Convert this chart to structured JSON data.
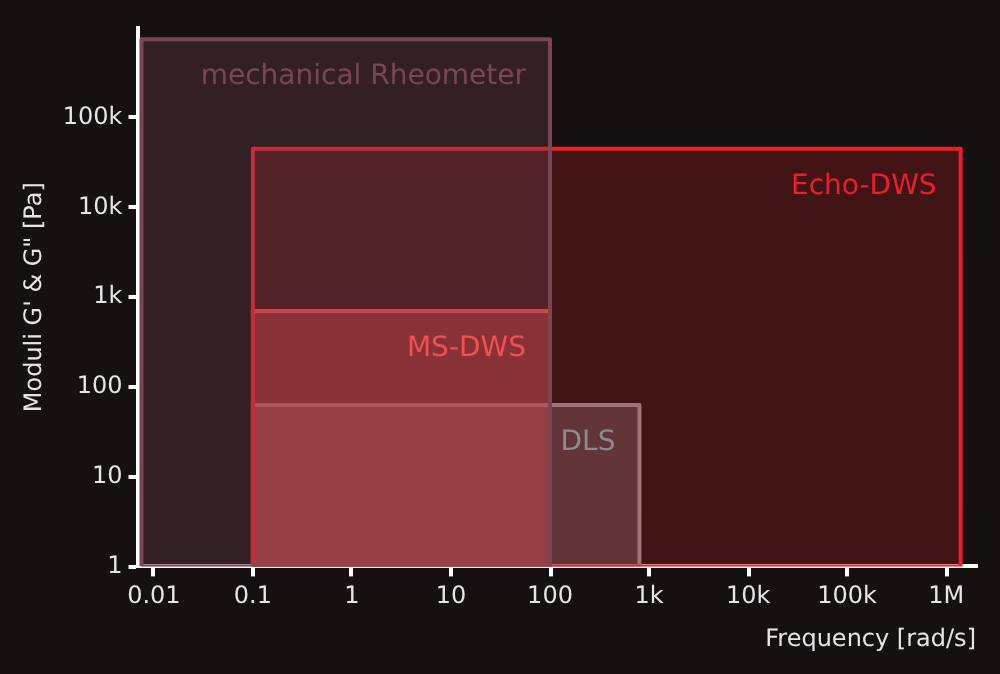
{
  "chart_data": {
    "type": "area",
    "xlabel": "Frequency [rad/s]",
    "ylabel": "Moduli G' & G\" [Pa]",
    "log": "xy",
    "grid": false,
    "legend": false,
    "xlim": [
      0.007,
      2000000
    ],
    "ylim": [
      1,
      1000000
    ],
    "xticks": [
      0.01,
      0.1,
      1,
      10,
      100,
      {
        "value": 1000,
        "label": "1k"
      },
      {
        "value": 10000,
        "label": "10k"
      },
      {
        "value": 100000,
        "label": "100k"
      },
      {
        "value": 1000000,
        "label": "1M"
      }
    ],
    "yticks": [
      1,
      10,
      100,
      {
        "value": 1000,
        "label": "1k"
      },
      {
        "value": 10000,
        "label": "10k"
      },
      {
        "value": 100000,
        "label": "100k"
      }
    ],
    "series": [
      {
        "name": "mechanical Rheometer",
        "color": "#7a4652",
        "x": [
          0.0075,
          100
        ],
        "values": [
          750000,
          750000
        ]
      },
      {
        "name": "Echo-DWS",
        "color": "#e8202e",
        "x": [
          0.1,
          1400000
        ],
        "values": [
          45000,
          45000
        ]
      },
      {
        "name": "MS-DWS",
        "color": "#f05050",
        "x": [
          0.1,
          100
        ],
        "values": [
          700,
          700
        ]
      },
      {
        "name": "DLS",
        "color": "#8c8c8c",
        "x": [
          0.1,
          800
        ],
        "values": [
          63,
          63
        ]
      }
    ]
  }
}
